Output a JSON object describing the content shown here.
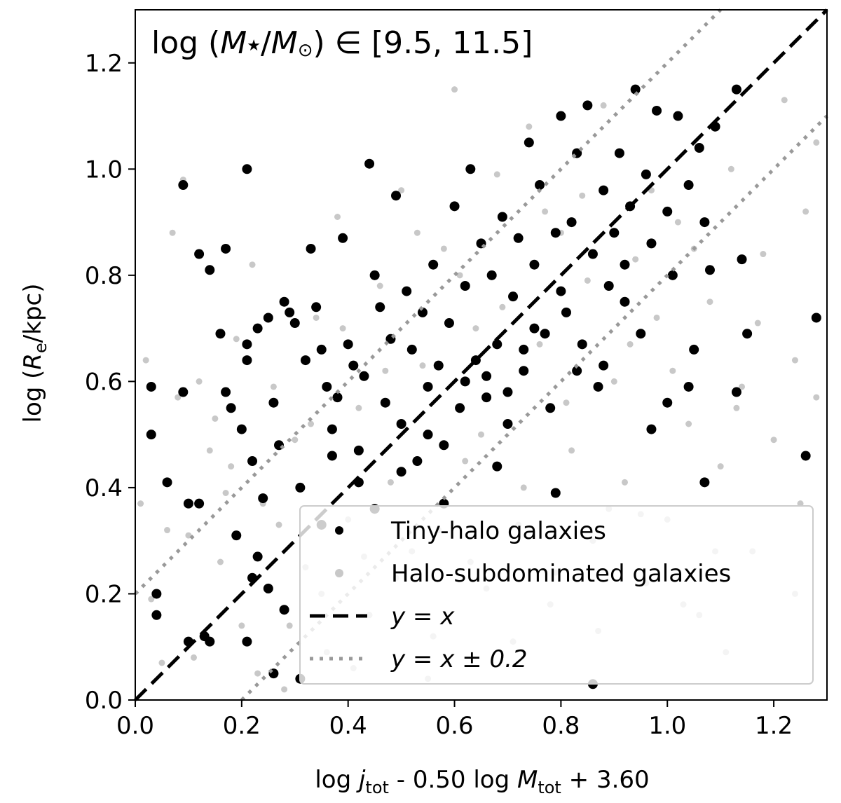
{
  "chart_data": {
    "type": "scatter",
    "annotation": {
      "prefix": "log (",
      "m1": "M",
      "star": "★",
      "slash": "/",
      "m2": "M",
      "sun": "⊙",
      "suffix": ") ∈ [9.5, 11.5]"
    },
    "xlabel": {
      "p1": "log ",
      "j": "j",
      "jsub": "tot",
      "p2": " - 0.50 log ",
      "M": "M",
      "Msub": "tot",
      "p3": " + 3.60"
    },
    "ylabel": {
      "p1": "log (",
      "R": "R",
      "Rsub": "e",
      "p2": "/kpc)"
    },
    "xlim": [
      0.0,
      1.3
    ],
    "ylim": [
      0.0,
      1.3
    ],
    "xticks": [
      "0.0",
      "0.2",
      "0.4",
      "0.6",
      "0.8",
      "1.0",
      "1.2"
    ],
    "yticks": [
      "0.0",
      "0.2",
      "0.4",
      "0.6",
      "0.8",
      "1.0",
      "1.2"
    ],
    "grid": false,
    "legend_position": "lower right",
    "legend": {
      "tiny": "Tiny-halo galaxies",
      "sub": "Halo-subdominated galaxies",
      "line1": "y = x",
      "line2": "y = x ± 0.2"
    },
    "colors": {
      "tiny": "#000000",
      "sub": "#c8c8c8",
      "line": "#000000",
      "dotted": "#999999"
    },
    "series": [
      {
        "name": "Tiny-halo galaxies",
        "points": [
          [
            0.03,
            0.59
          ],
          [
            0.03,
            0.5
          ],
          [
            0.04,
            0.2
          ],
          [
            0.04,
            0.16
          ],
          [
            0.06,
            0.41
          ],
          [
            0.09,
            0.97
          ],
          [
            0.09,
            0.58
          ],
          [
            0.1,
            0.37
          ],
          [
            0.12,
            0.84
          ],
          [
            0.12,
            0.37
          ],
          [
            0.14,
            0.81
          ],
          [
            0.16,
            0.69
          ],
          [
            0.17,
            0.85
          ],
          [
            0.17,
            0.58
          ],
          [
            0.18,
            0.55
          ],
          [
            0.19,
            0.31
          ],
          [
            0.2,
            0.51
          ],
          [
            0.21,
            1.0
          ],
          [
            0.21,
            0.67
          ],
          [
            0.21,
            0.64
          ],
          [
            0.22,
            0.45
          ],
          [
            0.22,
            0.23
          ],
          [
            0.23,
            0.7
          ],
          [
            0.24,
            0.38
          ],
          [
            0.25,
            0.72
          ],
          [
            0.26,
            0.56
          ],
          [
            0.27,
            0.48
          ],
          [
            0.28,
            0.75
          ],
          [
            0.29,
            0.73
          ],
          [
            0.3,
            0.71
          ],
          [
            0.31,
            0.4
          ],
          [
            0.32,
            0.64
          ],
          [
            0.33,
            0.85
          ],
          [
            0.34,
            0.74
          ],
          [
            0.35,
            0.66
          ],
          [
            0.36,
            0.59
          ],
          [
            0.37,
            0.51
          ],
          [
            0.38,
            0.57
          ],
          [
            0.39,
            0.87
          ],
          [
            0.4,
            0.67
          ],
          [
            0.41,
            0.63
          ],
          [
            0.42,
            0.47
          ],
          [
            0.43,
            0.61
          ],
          [
            0.44,
            1.01
          ],
          [
            0.45,
            0.8
          ],
          [
            0.46,
            0.74
          ],
          [
            0.47,
            0.56
          ],
          [
            0.48,
            0.68
          ],
          [
            0.49,
            0.95
          ],
          [
            0.5,
            0.52
          ],
          [
            0.51,
            0.77
          ],
          [
            0.52,
            0.66
          ],
          [
            0.53,
            0.45
          ],
          [
            0.54,
            0.73
          ],
          [
            0.55,
            0.59
          ],
          [
            0.56,
            0.82
          ],
          [
            0.57,
            0.63
          ],
          [
            0.58,
            0.48
          ],
          [
            0.59,
            0.71
          ],
          [
            0.6,
            0.93
          ],
          [
            0.61,
            0.55
          ],
          [
            0.62,
            0.78
          ],
          [
            0.63,
            1.0
          ],
          [
            0.64,
            0.64
          ],
          [
            0.65,
            0.86
          ],
          [
            0.66,
            0.57
          ],
          [
            0.67,
            0.8
          ],
          [
            0.68,
            0.67
          ],
          [
            0.69,
            0.91
          ],
          [
            0.7,
            0.52
          ],
          [
            0.71,
            0.76
          ],
          [
            0.72,
            0.87
          ],
          [
            0.73,
            0.62
          ],
          [
            0.74,
            1.05
          ],
          [
            0.75,
            0.82
          ],
          [
            0.76,
            0.97
          ],
          [
            0.77,
            0.69
          ],
          [
            0.78,
            0.55
          ],
          [
            0.79,
            0.88
          ],
          [
            0.8,
            1.1
          ],
          [
            0.81,
            0.73
          ],
          [
            0.82,
            0.9
          ],
          [
            0.83,
            1.03
          ],
          [
            0.84,
            0.67
          ],
          [
            0.85,
            1.12
          ],
          [
            0.86,
            0.84
          ],
          [
            0.87,
            0.59
          ],
          [
            0.88,
            0.96
          ],
          [
            0.89,
            0.78
          ],
          [
            0.9,
            0.88
          ],
          [
            0.91,
            1.03
          ],
          [
            0.92,
            0.75
          ],
          [
            0.93,
            0.93
          ],
          [
            0.94,
            1.15
          ],
          [
            0.95,
            0.69
          ],
          [
            0.96,
            0.99
          ],
          [
            0.97,
            0.86
          ],
          [
            0.98,
            1.11
          ],
          [
            1.0,
            0.92
          ],
          [
            1.01,
            0.8
          ],
          [
            1.02,
            1.1
          ],
          [
            1.04,
            0.97
          ],
          [
            1.05,
            0.66
          ],
          [
            1.06,
            1.04
          ],
          [
            1.07,
            0.9
          ],
          [
            1.08,
            0.81
          ],
          [
            1.09,
            1.08
          ],
          [
            1.13,
            1.15
          ],
          [
            1.14,
            0.83
          ],
          [
            1.15,
            0.69
          ],
          [
            1.13,
            0.58
          ],
          [
            1.26,
            0.46
          ],
          [
            1.28,
            0.72
          ],
          [
            1.07,
            0.41
          ],
          [
            0.86,
            0.03
          ],
          [
            0.79,
            0.39
          ],
          [
            0.68,
            0.44
          ],
          [
            0.58,
            0.37
          ],
          [
            0.45,
            0.36
          ],
          [
            0.35,
            0.33
          ],
          [
            0.28,
            0.17
          ],
          [
            0.31,
            0.04
          ],
          [
            0.26,
            0.05
          ],
          [
            0.21,
            0.11
          ],
          [
            0.14,
            0.11
          ],
          [
            0.13,
            0.12
          ],
          [
            0.1,
            0.11
          ],
          [
            0.25,
            0.21
          ],
          [
            0.23,
            0.27
          ],
          [
            0.37,
            0.46
          ],
          [
            0.42,
            0.41
          ],
          [
            0.5,
            0.43
          ],
          [
            0.55,
            0.5
          ],
          [
            0.62,
            0.6
          ],
          [
            0.66,
            0.61
          ],
          [
            0.7,
            0.58
          ],
          [
            0.73,
            0.66
          ],
          [
            0.75,
            0.7
          ],
          [
            0.8,
            0.77
          ],
          [
            0.83,
            0.62
          ],
          [
            0.88,
            0.63
          ],
          [
            0.92,
            0.82
          ],
          [
            0.97,
            0.51
          ],
          [
            1.0,
            0.56
          ],
          [
            1.04,
            0.59
          ]
        ]
      },
      {
        "name": "Halo-subdominated galaxies",
        "points": [
          [
            0.01,
            0.37
          ],
          [
            0.02,
            0.64
          ],
          [
            0.03,
            0.19
          ],
          [
            0.05,
            0.07
          ],
          [
            0.07,
            0.88
          ],
          [
            0.08,
            0.57
          ],
          [
            0.09,
            0.98
          ],
          [
            0.1,
            0.31
          ],
          [
            0.12,
            0.6
          ],
          [
            0.14,
            0.47
          ],
          [
            0.16,
            0.26
          ],
          [
            0.18,
            0.44
          ],
          [
            0.2,
            0.14
          ],
          [
            0.22,
            0.82
          ],
          [
            0.24,
            0.37
          ],
          [
            0.26,
            0.59
          ],
          [
            0.28,
            0.02
          ],
          [
            0.3,
            0.49
          ],
          [
            0.32,
            0.25
          ],
          [
            0.34,
            0.72
          ],
          [
            0.36,
            0.09
          ],
          [
            0.38,
            0.91
          ],
          [
            0.4,
            0.34
          ],
          [
            0.42,
            0.55
          ],
          [
            0.44,
            0.16
          ],
          [
            0.46,
            0.78
          ],
          [
            0.48,
            0.41
          ],
          [
            0.5,
            0.96
          ],
          [
            0.52,
            0.28
          ],
          [
            0.54,
            0.63
          ],
          [
            0.56,
            0.12
          ],
          [
            0.58,
            0.85
          ],
          [
            0.6,
            1.15
          ],
          [
            0.62,
            0.45
          ],
          [
            0.64,
            0.7
          ],
          [
            0.66,
            0.21
          ],
          [
            0.68,
            0.99
          ],
          [
            0.7,
            0.58
          ],
          [
            0.72,
            0.33
          ],
          [
            0.74,
            1.08
          ],
          [
            0.76,
            0.67
          ],
          [
            0.78,
            0.18
          ],
          [
            0.8,
            0.88
          ],
          [
            0.82,
            0.47
          ],
          [
            0.84,
            0.95
          ],
          [
            0.86,
            0.3
          ],
          [
            0.88,
            1.12
          ],
          [
            0.9,
            0.6
          ],
          [
            0.92,
            0.41
          ],
          [
            0.94,
            0.83
          ],
          [
            0.96,
            0.22
          ],
          [
            0.98,
            0.72
          ],
          [
            1.0,
            0.34
          ],
          [
            1.02,
            0.9
          ],
          [
            1.04,
            0.52
          ],
          [
            1.06,
            0.16
          ],
          [
            1.08,
            0.75
          ],
          [
            1.1,
            0.44
          ],
          [
            1.12,
            1.0
          ],
          [
            1.14,
            0.59
          ],
          [
            1.16,
            0.28
          ],
          [
            1.18,
            0.84
          ],
          [
            1.2,
            0.49
          ],
          [
            1.22,
            1.13
          ],
          [
            1.24,
            0.64
          ],
          [
            1.24,
            0.2
          ],
          [
            1.26,
            0.92
          ],
          [
            1.28,
            1.05
          ],
          [
            1.28,
            0.57
          ],
          [
            1.25,
            0.37
          ],
          [
            0.15,
            0.53
          ],
          [
            0.19,
            0.68
          ],
          [
            0.27,
            0.33
          ],
          [
            0.33,
            0.52
          ],
          [
            0.39,
            0.7
          ],
          [
            0.43,
            0.27
          ],
          [
            0.47,
            0.62
          ],
          [
            0.53,
            0.88
          ],
          [
            0.57,
            0.32
          ],
          [
            0.61,
            0.8
          ],
          [
            0.65,
            0.5
          ],
          [
            0.69,
            0.74
          ],
          [
            0.73,
            0.4
          ],
          [
            0.77,
            0.92
          ],
          [
            0.81,
            0.56
          ],
          [
            0.85,
            0.79
          ],
          [
            0.89,
            0.36
          ],
          [
            0.93,
            0.67
          ],
          [
            0.97,
            0.96
          ],
          [
            1.01,
            0.62
          ],
          [
            1.05,
            0.85
          ],
          [
            1.09,
            0.28
          ],
          [
            1.13,
            0.55
          ],
          [
            1.17,
            0.71
          ],
          [
            0.06,
            0.32
          ],
          [
            0.11,
            0.08
          ],
          [
            0.17,
            0.39
          ],
          [
            0.23,
            0.05
          ],
          [
            0.29,
            0.14
          ],
          [
            0.35,
            0.2
          ],
          [
            0.41,
            0.06
          ],
          [
            0.49,
            0.23
          ],
          [
            0.55,
            0.04
          ],
          [
            0.63,
            0.26
          ],
          [
            0.71,
            0.11
          ],
          [
            0.79,
            0.24
          ],
          [
            0.87,
            0.13
          ],
          [
            0.95,
            0.35
          ],
          [
            1.03,
            0.18
          ],
          [
            1.11,
            0.09
          ]
        ]
      }
    ]
  }
}
